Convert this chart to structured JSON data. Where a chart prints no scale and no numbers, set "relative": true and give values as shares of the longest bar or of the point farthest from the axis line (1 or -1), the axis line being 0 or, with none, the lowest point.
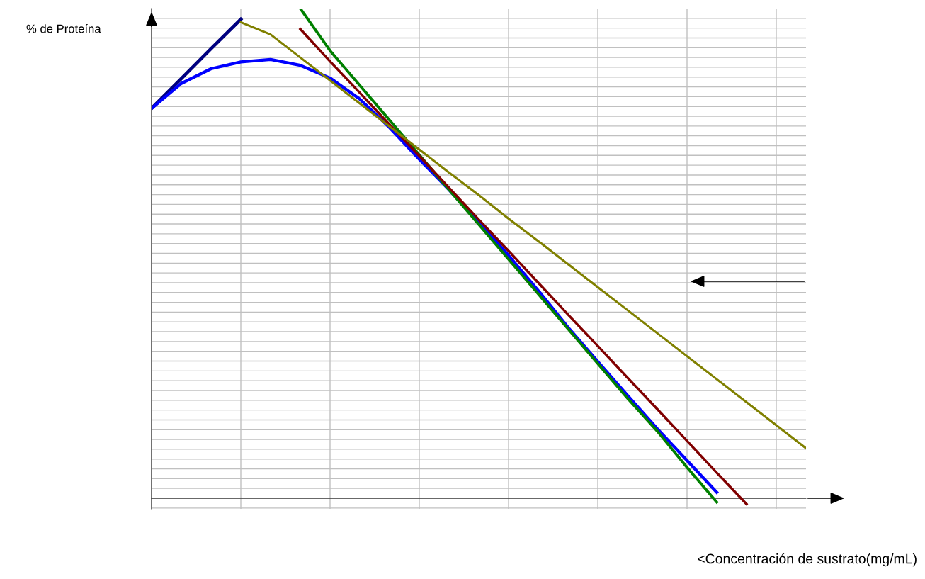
{
  "chart_data": {
    "type": "line",
    "relative": true,
    "grid": true,
    "marker": "none",
    "line_style": "solid",
    "xlabel": "<Concentración de sustrato(mg/mL)",
    "ylabel": "% de Proteína",
    "categories": [
      null,
      null,
      null,
      null,
      null,
      null,
      null,
      null,
      null,
      null,
      null,
      null,
      null,
      null,
      null,
      null,
      null,
      null,
      null,
      null,
      null,
      null,
      null
    ],
    "series": [
      {
        "color": "#000080",
        "values": [
          0.796,
          0.857,
          0.918,
          0.978,
          null,
          null,
          null,
          null,
          null,
          null,
          null,
          null,
          null,
          null,
          null,
          null,
          null,
          null,
          null,
          null,
          null,
          null,
          null
        ]
      },
      {
        "color": "#0000ff",
        "values": [
          0.796,
          0.847,
          0.877,
          0.891,
          0.896,
          0.884,
          0.858,
          0.815,
          0.757,
          0.692,
          0.63,
          0.564,
          0.496,
          0.424,
          0.349,
          0.279,
          0.21,
          0.142,
          0.077,
          0.012,
          null,
          null,
          null
        ]
      },
      {
        "color": "#008000",
        "values": [
          null,
          null,
          null,
          null,
          null,
          1.0,
          0.914,
          0.843,
          0.772,
          0.701,
          0.63,
          0.559,
          0.488,
          0.417,
          0.346,
          0.275,
          0.204,
          0.137,
          0.063,
          -0.008,
          null,
          null,
          null
        ]
      },
      {
        "color": "#800000",
        "values": [
          null,
          null,
          null,
          null,
          null,
          0.958,
          0.892,
          0.828,
          0.763,
          0.699,
          0.634,
          0.569,
          0.505,
          0.44,
          0.375,
          0.311,
          0.246,
          0.182,
          0.117,
          0.052,
          -0.012,
          null,
          null
        ]
      },
      {
        "color": "#808000",
        "values": [
          null,
          null,
          null,
          0.972,
          0.947,
          0.9,
          0.853,
          0.806,
          0.759,
          0.712,
          0.665,
          0.619,
          0.571,
          0.525,
          0.478,
          0.431,
          0.384,
          0.337,
          0.29,
          0.243,
          0.196,
          0.149,
          0.102
        ]
      }
    ]
  }
}
